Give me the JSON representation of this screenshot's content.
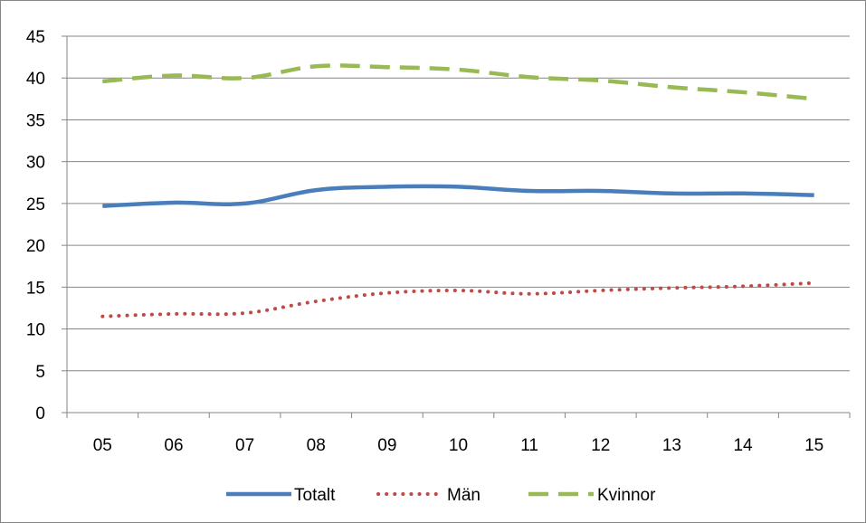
{
  "chart_data": {
    "type": "line",
    "categories": [
      "05",
      "06",
      "07",
      "08",
      "09",
      "10",
      "11",
      "12",
      "13",
      "14",
      "15"
    ],
    "ylim": [
      0,
      45
    ],
    "yticks": [
      0,
      5,
      10,
      15,
      20,
      25,
      30,
      35,
      40,
      45
    ],
    "grid": true,
    "legend_position": "bottom",
    "series": [
      {
        "name": "Totalt",
        "color": "#4a7ebb",
        "style": "solid",
        "values": [
          24.7,
          25.1,
          25.0,
          26.6,
          27.0,
          27.0,
          26.5,
          26.5,
          26.2,
          26.2,
          26.0
        ]
      },
      {
        "name": "Män",
        "color": "#be4b48",
        "style": "dotted",
        "values": [
          11.5,
          11.8,
          11.9,
          13.3,
          14.3,
          14.6,
          14.2,
          14.6,
          14.9,
          15.1,
          15.5
        ]
      },
      {
        "name": "Kvinnor",
        "color": "#98b954",
        "style": "dashed",
        "values": [
          39.6,
          40.3,
          40.0,
          41.4,
          41.3,
          41.0,
          40.1,
          39.7,
          38.9,
          38.3,
          37.5
        ]
      }
    ]
  }
}
